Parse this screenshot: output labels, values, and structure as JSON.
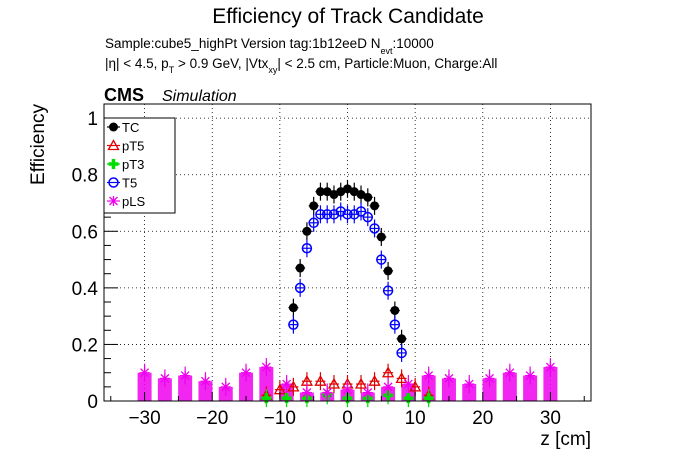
{
  "chart_data": {
    "type": "scatter",
    "title": "Efficiency of Track Candidate",
    "subtitle_line1": "Sample:cube5_highPt   Version tag:1b12eeD  N",
    "subtitle_line1_sub": "evt",
    "subtitle_line1_end": ":10000",
    "subtitle_line2_parts": [
      "|η| < 4.5, p",
      "T",
      " > 0.9 GeV, |Vtx",
      "xy",
      "| < 2.5 cm, Particle:Muon, Charge:All"
    ],
    "cms_label": "CMS",
    "cms_sublabel": "Simulation",
    "xlabel": "z [cm]",
    "ylabel": "Efficiency",
    "xlim": [
      -36,
      36
    ],
    "ylim": [
      0,
      1.05
    ],
    "xticks": [
      -30,
      -20,
      -10,
      0,
      10,
      20,
      30
    ],
    "yticks": [
      0,
      0.2,
      0.4,
      0.6,
      0.8,
      1
    ],
    "ytick_labels": [
      "0",
      "0.2",
      "0.4",
      "0.6",
      "0.8",
      "1"
    ],
    "grid": true,
    "legend_position": "top-left",
    "series": [
      {
        "name": "TC",
        "color": "#000000",
        "marker": "filled-circle",
        "x": [
          -8,
          -7,
          -6,
          -5,
          -4,
          -3,
          -2,
          -1,
          0,
          1,
          2,
          3,
          4,
          5,
          6,
          7,
          8
        ],
        "y": [
          0.33,
          0.47,
          0.6,
          0.69,
          0.74,
          0.74,
          0.73,
          0.74,
          0.75,
          0.74,
          0.73,
          0.72,
          0.69,
          0.58,
          0.46,
          0.32,
          0.22
        ]
      },
      {
        "name": "pT5",
        "color": "#e00000",
        "marker": "open-triangle",
        "x": [
          -12,
          -10,
          -8,
          -6,
          -4,
          -2,
          0,
          2,
          4,
          6,
          8,
          10,
          12
        ],
        "y": [
          0.02,
          0.04,
          0.05,
          0.07,
          0.07,
          0.06,
          0.06,
          0.06,
          0.07,
          0.1,
          0.08,
          0.05,
          0.02
        ]
      },
      {
        "name": "pT3",
        "color": "#00dd00",
        "marker": "filled-cross",
        "x": [
          -12,
          -9,
          -6,
          -3,
          0,
          3,
          6,
          9,
          12
        ],
        "y": [
          0.01,
          0.01,
          0.01,
          0.02,
          0.01,
          0.01,
          0.02,
          0.01,
          0.01
        ]
      },
      {
        "name": "T5",
        "color": "#0000ff",
        "marker": "open-circle",
        "x": [
          -8,
          -7,
          -6,
          -5,
          -4,
          -3,
          -2,
          -1,
          0,
          1,
          2,
          3,
          4,
          5,
          6,
          7,
          8
        ],
        "y": [
          0.27,
          0.4,
          0.54,
          0.63,
          0.66,
          0.66,
          0.66,
          0.67,
          0.66,
          0.66,
          0.67,
          0.65,
          0.61,
          0.5,
          0.39,
          0.27,
          0.17
        ]
      },
      {
        "name": "pLS",
        "color": "#ee00ee",
        "marker": "open-star",
        "x": [
          -30,
          -27,
          -24,
          -21,
          -18,
          -15,
          -12,
          -9,
          -6,
          -3,
          0,
          3,
          6,
          9,
          12,
          15,
          18,
          21,
          24,
          27,
          30
        ],
        "y": [
          0.1,
          0.08,
          0.09,
          0.07,
          0.05,
          0.1,
          0.12,
          0.06,
          0.03,
          0.03,
          0.04,
          0.03,
          0.05,
          0.06,
          0.09,
          0.08,
          0.06,
          0.08,
          0.1,
          0.09,
          0.12
        ]
      }
    ]
  }
}
